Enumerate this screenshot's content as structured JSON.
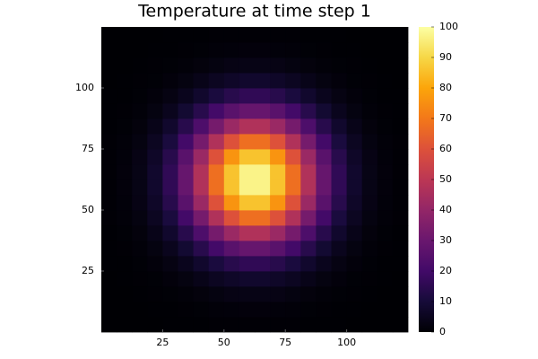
{
  "chart_data": {
    "type": "heatmap",
    "title": "Temperature at time step 1",
    "x_edges": [
      0,
      6.25,
      12.5,
      18.75,
      25,
      31.25,
      37.5,
      43.75,
      50,
      56.25,
      62.5,
      68.75,
      75,
      81.25,
      87.5,
      93.75,
      100,
      106.25,
      112.5,
      118.75,
      125
    ],
    "y_edges": [
      0,
      6.25,
      12.5,
      18.75,
      25,
      31.25,
      37.5,
      43.75,
      50,
      56.25,
      62.5,
      68.75,
      75,
      81.25,
      87.5,
      93.75,
      100,
      106.25,
      112.5,
      118.75,
      125
    ],
    "z": [
      [
        0,
        0,
        0,
        0,
        0.1,
        0.1,
        0.2,
        0.3,
        0.4,
        0.4,
        0.4,
        0.4,
        0.3,
        0.2,
        0.1,
        0.1,
        0,
        0,
        0,
        0
      ],
      [
        0,
        0,
        0,
        0.1,
        0.2,
        0.4,
        0.6,
        0.9,
        1.1,
        1.3,
        1.3,
        1.1,
        0.9,
        0.6,
        0.4,
        0.2,
        0.1,
        0,
        0,
        0
      ],
      [
        0,
        0,
        0.1,
        0.3,
        0.5,
        1.0,
        1.6,
        2.3,
        3.0,
        3.3,
        3.3,
        3.0,
        2.3,
        1.6,
        1.0,
        0.5,
        0.3,
        0.1,
        0,
        0
      ],
      [
        0,
        0.1,
        0.3,
        0.6,
        1.3,
        2.3,
        3.7,
        5.4,
        6.8,
        7.7,
        7.7,
        6.8,
        5.4,
        3.7,
        2.3,
        1.3,
        0.6,
        0.3,
        0.1,
        0
      ],
      [
        0.1,
        0.2,
        0.5,
        1.3,
        2.6,
        4.7,
        7.7,
        11.0,
        14.1,
        15.9,
        15.9,
        14.1,
        11.0,
        7.7,
        4.7,
        2.6,
        1.3,
        0.5,
        0.2,
        0.1
      ],
      [
        0.1,
        0.4,
        1.0,
        2.3,
        4.7,
        8.7,
        14.1,
        20.2,
        25.8,
        29.1,
        29.1,
        25.8,
        20.2,
        14.1,
        8.7,
        4.7,
        2.3,
        1.0,
        0.4,
        0.1
      ],
      [
        0.2,
        0.6,
        1.6,
        3.7,
        7.7,
        14.1,
        22.8,
        32.8,
        41.7,
        47.1,
        47.1,
        41.7,
        32.8,
        22.8,
        14.1,
        7.7,
        3.7,
        1.6,
        0.6,
        0.2
      ],
      [
        0.3,
        0.9,
        2.3,
        5.4,
        11.0,
        20.2,
        32.8,
        47.1,
        59.9,
        67.6,
        67.6,
        59.9,
        47.1,
        32.8,
        20.2,
        11.0,
        5.4,
        2.3,
        0.9,
        0.3
      ],
      [
        0.4,
        1.1,
        3.0,
        6.8,
        14.1,
        25.8,
        41.7,
        59.9,
        76.2,
        86.0,
        86.0,
        76.2,
        59.9,
        41.7,
        25.8,
        14.1,
        6.8,
        3.0,
        1.1,
        0.4
      ],
      [
        0.4,
        1.3,
        3.3,
        7.7,
        15.9,
        29.1,
        47.1,
        67.6,
        86.0,
        97.0,
        97.0,
        86.0,
        67.6,
        47.1,
        29.1,
        15.9,
        7.7,
        3.3,
        1.3,
        0.4
      ],
      [
        0.4,
        1.3,
        3.3,
        7.7,
        15.9,
        29.1,
        47.1,
        67.6,
        86.0,
        97.0,
        97.0,
        86.0,
        67.6,
        47.1,
        29.1,
        15.9,
        7.7,
        3.3,
        1.3,
        0.4
      ],
      [
        0.4,
        1.1,
        3.0,
        6.8,
        14.1,
        25.8,
        41.7,
        59.9,
        76.2,
        86.0,
        86.0,
        76.2,
        59.9,
        41.7,
        25.8,
        14.1,
        6.8,
        3.0,
        1.1,
        0.4
      ],
      [
        0.3,
        0.9,
        2.3,
        5.4,
        11.0,
        20.2,
        32.8,
        47.1,
        59.9,
        67.6,
        67.6,
        59.9,
        47.1,
        32.8,
        20.2,
        11.0,
        5.4,
        2.3,
        0.9,
        0.3
      ],
      [
        0.2,
        0.6,
        1.6,
        3.7,
        7.7,
        14.1,
        22.8,
        32.8,
        41.7,
        47.1,
        47.1,
        41.7,
        32.8,
        22.8,
        14.1,
        7.7,
        3.7,
        1.6,
        0.6,
        0.2
      ],
      [
        0.1,
        0.4,
        1.0,
        2.3,
        4.7,
        8.7,
        14.1,
        20.2,
        25.8,
        29.1,
        29.1,
        25.8,
        20.2,
        14.1,
        8.7,
        4.7,
        2.3,
        1.0,
        0.4,
        0.1
      ],
      [
        0.1,
        0.2,
        0.5,
        1.3,
        2.6,
        4.7,
        7.7,
        11.0,
        14.1,
        15.9,
        15.9,
        14.1,
        11.0,
        7.7,
        4.7,
        2.6,
        1.3,
        0.5,
        0.2,
        0.1
      ],
      [
        0,
        0.1,
        0.3,
        0.6,
        1.3,
        2.3,
        3.7,
        5.4,
        6.8,
        7.7,
        7.7,
        6.8,
        5.4,
        3.7,
        2.3,
        1.3,
        0.6,
        0.3,
        0.1,
        0
      ],
      [
        0,
        0,
        0.1,
        0.3,
        0.5,
        1.0,
        1.6,
        2.3,
        3.0,
        3.3,
        3.3,
        3.0,
        2.3,
        1.6,
        1.0,
        0.5,
        0.3,
        0.1,
        0,
        0
      ],
      [
        0,
        0,
        0,
        0.1,
        0.2,
        0.4,
        0.6,
        0.9,
        1.1,
        1.3,
        1.3,
        1.1,
        0.9,
        0.6,
        0.4,
        0.2,
        0.1,
        0,
        0,
        0
      ],
      [
        0,
        0,
        0,
        0,
        0.1,
        0.1,
        0.2,
        0.3,
        0.4,
        0.4,
        0.4,
        0.4,
        0.3,
        0.2,
        0.1,
        0.1,
        0,
        0,
        0,
        0
      ]
    ],
    "xlim": [
      0,
      125
    ],
    "ylim": [
      0,
      125
    ],
    "xticks": [
      25,
      50,
      75,
      100
    ],
    "yticks": [
      25,
      50,
      75,
      100
    ],
    "clim": [
      0,
      100
    ],
    "cticks": [
      0,
      10,
      20,
      30,
      40,
      50,
      60,
      70,
      80,
      90,
      100
    ],
    "colormap": [
      "#000004",
      "#160b39",
      "#420a68",
      "#6a176e",
      "#932667",
      "#bc3754",
      "#dd513a",
      "#f37819",
      "#fca50a",
      "#f6d746",
      "#fcffa4"
    ]
  }
}
